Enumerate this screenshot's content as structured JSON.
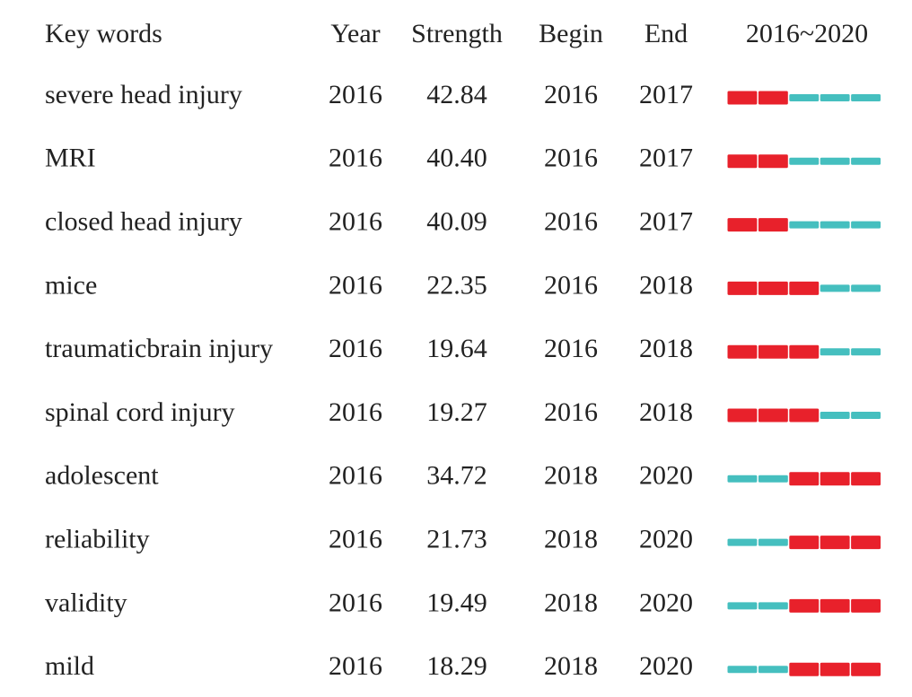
{
  "table": {
    "header": [
      "Key words",
      "Year",
      "Strength",
      "Begin",
      "End",
      "2016~2020"
    ],
    "rows": [
      [
        "severe head injury",
        2016,
        "42.84",
        2016,
        2017
      ],
      [
        "MRI",
        2016,
        "40.40",
        2016,
        2017
      ],
      [
        "closed head injury",
        2016,
        "40.09",
        2016,
        2017
      ],
      [
        "mice",
        2016,
        "22.35",
        2016,
        2018
      ],
      [
        "traumaticbrain injury",
        2016,
        "19.64",
        2016,
        2018
      ],
      [
        "spinal cord injury",
        2016,
        "19.27",
        2016,
        2018
      ],
      [
        "adolescent",
        2016,
        "34.72",
        2018,
        2020
      ],
      [
        "reliability",
        2016,
        "21.73",
        2018,
        2020
      ],
      [
        "validity",
        2016,
        "19.49",
        2018,
        2020
      ],
      [
        "mild",
        2016,
        "18.29",
        2018,
        2020
      ]
    ]
  }
}
